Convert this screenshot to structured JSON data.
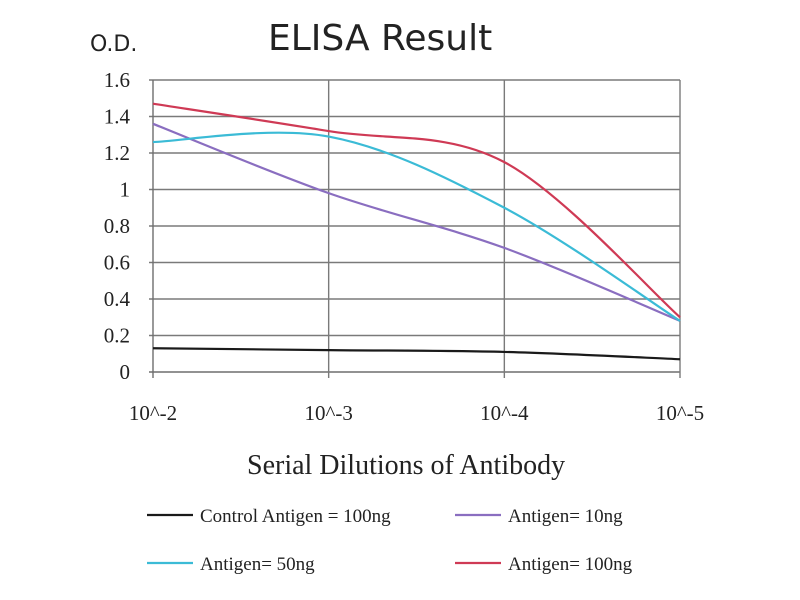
{
  "chart_data": {
    "type": "line",
    "title": "ELISA Result",
    "ylabel": "O.D.",
    "xlabel": "Serial Dilutions of Antibody",
    "categories": [
      "10^-2",
      "10^-3",
      "10^-4",
      "10^-5"
    ],
    "ylim": [
      0,
      1.6
    ],
    "yticks": [
      "0",
      "0.2",
      "0.4",
      "0.6",
      "0.8",
      "1",
      "1.2",
      "1.4",
      "1.6"
    ],
    "grid": true,
    "legend_position": "bottom",
    "series": [
      {
        "name": "Control Antigen = 100ng",
        "color": "#1a1a1a",
        "values": [
          0.13,
          0.12,
          0.11,
          0.07
        ]
      },
      {
        "name": "Antigen= 10ng",
        "color": "#8a6ec0",
        "values": [
          1.36,
          0.98,
          0.68,
          0.28
        ]
      },
      {
        "name": "Antigen= 50ng",
        "color": "#3bbbd6",
        "values": [
          1.26,
          1.29,
          0.9,
          0.28
        ]
      },
      {
        "name": "Antigen= 100ng",
        "color": "#cf3a55",
        "values": [
          1.47,
          1.32,
          1.15,
          0.3
        ]
      }
    ]
  }
}
